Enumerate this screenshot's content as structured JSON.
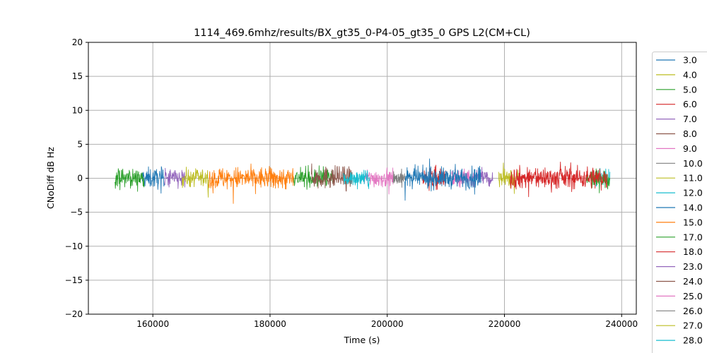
{
  "chart_data": {
    "type": "line",
    "title": "1114_469.6mhz/results/BX_gt35_0-P4-05_gt35_0 GPS L2(CM+CL)",
    "xlabel": "Time (s)",
    "ylabel": "CNoDiff dB Hz",
    "xlim": [
      149000,
      242500
    ],
    "ylim": [
      -20,
      20
    ],
    "xticks": [
      160000,
      180000,
      200000,
      220000,
      240000
    ],
    "yticks": [
      20,
      15,
      10,
      5,
      0,
      -5,
      -10,
      -15,
      -20
    ],
    "grid": true,
    "legend_position": "right, outside plot area (partially cut off)",
    "series": [
      {
        "name": "3.0",
        "color": "#1f77b4",
        "segments": [
          [
            158000,
            162000,
            0.0,
            1.0
          ]
        ]
      },
      {
        "name": "4.0",
        "color": "#bcbd22",
        "segments": [
          [
            165000,
            169500,
            0.3,
            0.9
          ]
        ]
      },
      {
        "name": "5.0",
        "color": "#2ca02c",
        "segments": [
          [
            153500,
            158500,
            0.2,
            0.9
          ],
          [
            184000,
            191000,
            0.2,
            0.9
          ]
        ]
      },
      {
        "name": "6.0",
        "color": "#d62728",
        "segments": [
          [
            206000,
            210000,
            -0.2,
            1.1
          ]
        ]
      },
      {
        "name": "7.0",
        "color": "#9467bd",
        "segments": [
          [
            162000,
            165500,
            -0.2,
            1.0
          ],
          [
            215000,
            218000,
            0.2,
            0.8
          ]
        ]
      },
      {
        "name": "8.0",
        "color": "#8c564b",
        "segments": [
          [
            187000,
            194000,
            0.6,
            1.1
          ]
        ]
      },
      {
        "name": "9.0",
        "color": "#e377c2",
        "segments": [
          [
            196000,
            201000,
            0.2,
            0.9
          ],
          [
            211000,
            215000,
            0.3,
            0.8
          ]
        ]
      },
      {
        "name": "10.0",
        "color": "#7f7f7f",
        "segments": [
          [
            201000,
            203000,
            0.1,
            0.8
          ]
        ]
      },
      {
        "name": "11.0",
        "color": "#bcbd22",
        "segments": [
          [
            219000,
            222500,
            -0.5,
            0.9
          ]
        ]
      },
      {
        "name": "12.0",
        "color": "#17becf",
        "segments": [
          [
            192500,
            197000,
            -0.3,
            0.8
          ],
          [
            235500,
            238000,
            0.3,
            0.8
          ]
        ]
      },
      {
        "name": "14.0",
        "color": "#1f77b4",
        "segments": [
          [
            203000,
            216000,
            0.2,
            1.0
          ]
        ]
      },
      {
        "name": "15.0",
        "color": "#ff7f0e",
        "segments": [
          [
            169500,
            184000,
            0.0,
            1.1
          ]
        ]
      },
      {
        "name": "17.0",
        "color": "#2ca02c",
        "segments": [
          [
            234000,
            238000,
            -0.4,
            0.9
          ]
        ]
      },
      {
        "name": "18.0",
        "color": "#d62728",
        "segments": [
          [
            221000,
            237500,
            0.4,
            1.1
          ]
        ]
      },
      {
        "name": "23.0",
        "color": "#9467bd",
        "segments": []
      },
      {
        "name": "24.0",
        "color": "#8c564b",
        "segments": []
      },
      {
        "name": "25.0",
        "color": "#e377c2",
        "segments": []
      },
      {
        "name": "26.0",
        "color": "#7f7f7f",
        "segments": []
      },
      {
        "name": "27.0",
        "color": "#bcbd22",
        "segments": []
      },
      {
        "name": "28.0",
        "color": "#17becf",
        "segments": []
      }
    ]
  }
}
